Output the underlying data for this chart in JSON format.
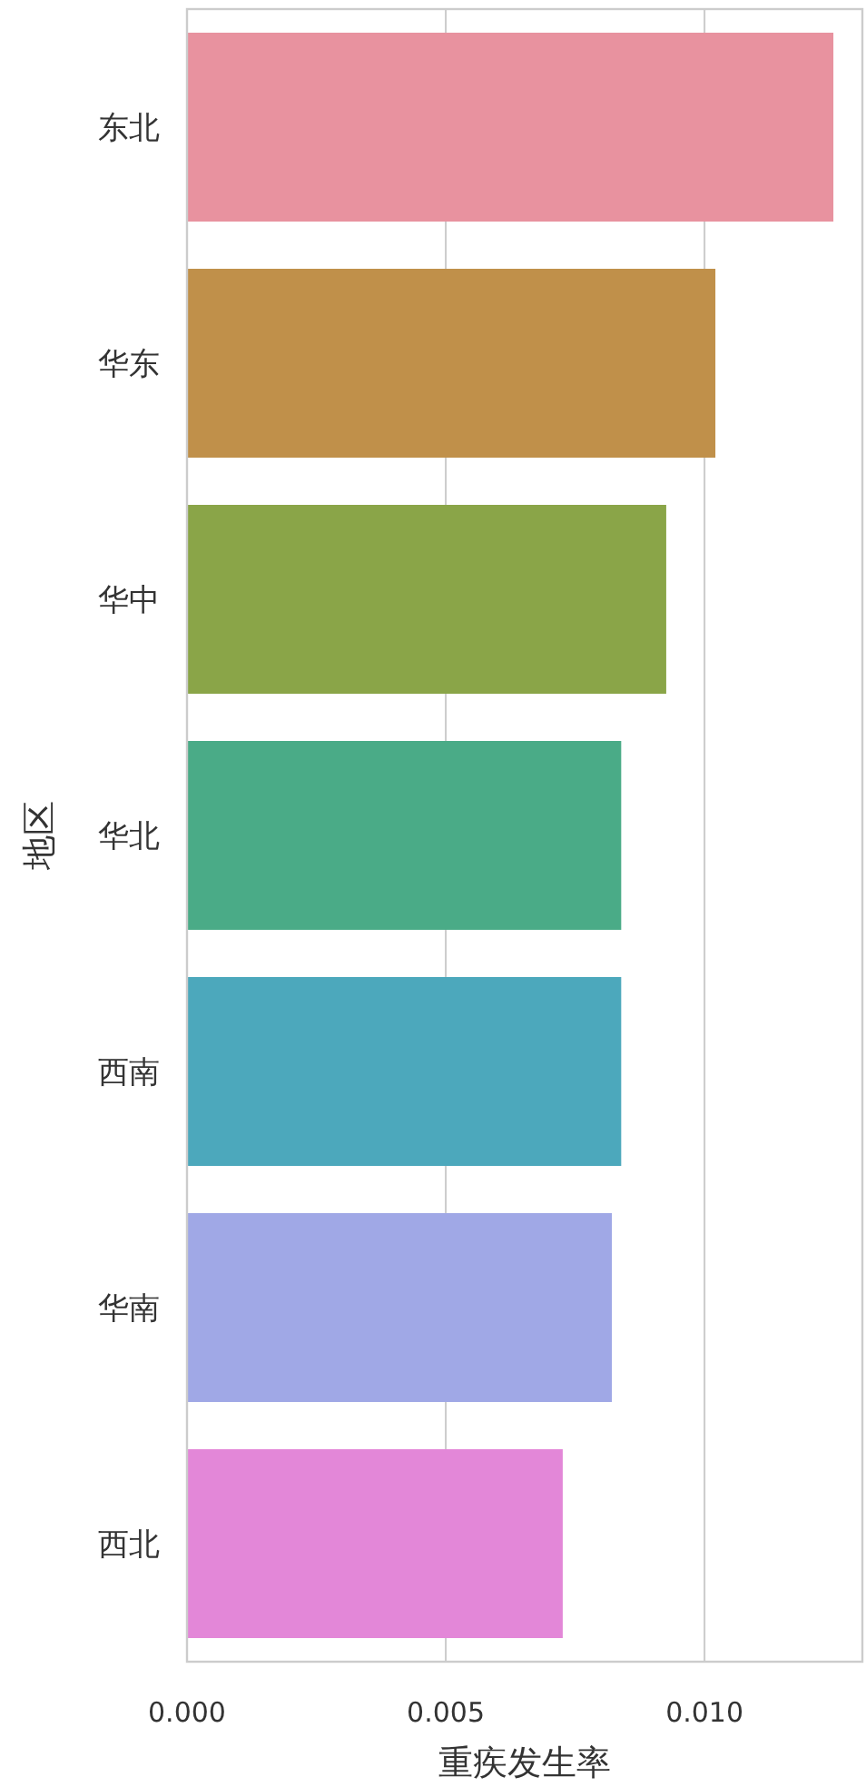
{
  "chart_data": {
    "type": "bar",
    "orientation": "horizontal",
    "xlabel": "重疾发生率",
    "ylabel": "地区",
    "categories": [
      "东北",
      "华东",
      "华中",
      "华北",
      "西南",
      "华南",
      "西北"
    ],
    "values": [
      0.01249,
      0.01021,
      0.00926,
      0.00839,
      0.00839,
      0.00821,
      0.00726
    ],
    "colors": [
      "#e8929f",
      "#c0904a",
      "#8aa548",
      "#4aab87",
      "#4ca8bc",
      "#a0a8e6",
      "#e387d8"
    ],
    "xlim": [
      0,
      0.01305
    ],
    "xticks": [
      {
        "value": 0,
        "label": "0.000"
      },
      {
        "value": 0.005,
        "label": "0.005"
      },
      {
        "value": 0.01,
        "label": "0.010"
      }
    ],
    "grid": "x"
  }
}
